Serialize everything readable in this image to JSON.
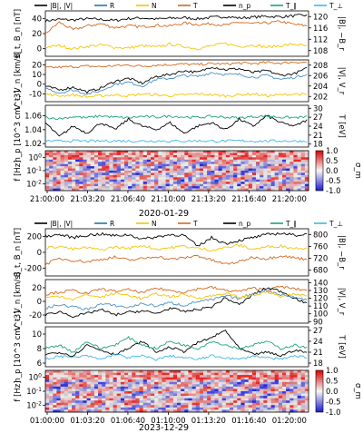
{
  "figure": {
    "colors": {
      "B": "#1f6fb4",
      "Bmag": "#000000",
      "R": "#1f77b4",
      "N": "#f5c400",
      "T": "#d2691e",
      "np": "#000000",
      "Tpar": "#1aa37a",
      "Tperp": "#3fb8e6",
      "Vt": "#000000",
      "Vr": "#4a90c8",
      "Vn": "#f5c400",
      "Vmag": "#d2691e"
    }
  },
  "chart_data": [
    {
      "type": "line",
      "event_date": "2020-01-29",
      "legend": [
        "|B|, |V|",
        "R",
        "N",
        "T",
        "n_p",
        "T_∥",
        "T_⊥"
      ],
      "x_tick_labels": [
        "21:00:00",
        "21:03:20",
        "21:06:40",
        "21:10:00",
        "21:13:20",
        "21:16:40",
        "21:20:00"
      ],
      "panels": [
        {
          "name": "magnetic-field",
          "ylabel_left": "B_t, B_n [nT]",
          "ylabel_right": "|B|, −B_r",
          "yticks_left": [
            "0",
            "20",
            "40"
          ],
          "yticks_right": [
            "108",
            "112",
            "116",
            "120"
          ],
          "ylim_left": [
            -10,
            50
          ],
          "ylim_right": [
            106,
            122
          ],
          "series": [
            {
              "name": "|B|",
              "axis": "right",
              "values": [
                118.5,
                119,
                118.8,
                119.2,
                119,
                118.6,
                119.3,
                119.5,
                119.1,
                119.4,
                119.6,
                119.2,
                119.7,
                120,
                119.5,
                119.8,
                120.1,
                119.9,
                120.3,
                120.5
              ]
            },
            {
              "name": "T",
              "axis": "left",
              "values": [
                20,
                35,
                25,
                30,
                33,
                28,
                30,
                29,
                31,
                30,
                34,
                32,
                33,
                31,
                35,
                33,
                34,
                36,
                32,
                30
              ]
            },
            {
              "name": "N",
              "axis": "left",
              "values": [
                2,
                4,
                0,
                3,
                5,
                2,
                1,
                4,
                2,
                6,
                3,
                0,
                4,
                7,
                3,
                5,
                2,
                4,
                6,
                3
              ]
            }
          ]
        },
        {
          "name": "velocity",
          "ylabel_left": "V_t, V_n [km/s]",
          "ylabel_right": "|V|, V_r",
          "yticks_left": [
            "-10",
            "0",
            "10",
            "20"
          ],
          "yticks_right": [
            "202",
            "204",
            "206",
            "208"
          ],
          "ylim_left": [
            -18,
            25
          ],
          "ylim_right": [
            201,
            209
          ],
          "series": [
            {
              "name": "|V|",
              "axis": "right",
              "values": [
                207.5,
                207.6,
                207.7,
                207.8,
                207.7,
                207.9,
                208,
                207.8,
                208,
                208.1,
                208.2,
                208.1,
                208.3,
                208.2,
                208.4,
                208.3,
                208.5,
                208.4,
                208.6,
                208.5
              ]
            },
            {
              "name": "V_t",
              "axis": "left",
              "values": [
                -2,
                -6,
                -3,
                -8,
                -4,
                3,
                6,
                1,
                8,
                10,
                14,
                12,
                18,
                15,
                16,
                12,
                14,
                9,
                11,
                17
              ]
            },
            {
              "name": "V_r",
              "axis": "left",
              "values": [
                -4,
                -9,
                -6,
                -10,
                -7,
                0,
                2,
                -2,
                5,
                6,
                9,
                8,
                12,
                10,
                10,
                7,
                9,
                5,
                7,
                11
              ]
            },
            {
              "name": "V_n",
              "axis": "left",
              "values": [
                -10,
                -12,
                -11,
                -13,
                -12,
                -11,
                -12,
                -10,
                -11,
                -12,
                -11,
                -10,
                -11,
                -12,
                -11,
                -10,
                -12,
                -11,
                -10,
                -11
              ]
            }
          ]
        },
        {
          "name": "density-temperature",
          "ylabel_left": "n_p [10^3 cm^-3]",
          "ylabel_right": "T [eV]",
          "yticks_left": [
            "1.02",
            "1.04",
            "1.06"
          ],
          "yticks_right": [
            "18",
            "21",
            "24",
            "27",
            "30"
          ],
          "ylim_left": [
            1.015,
            1.075
          ],
          "ylim_right": [
            17,
            31
          ],
          "series": [
            {
              "name": "n_p",
              "axis": "left",
              "values": [
                1.05,
                1.03,
                1.045,
                1.035,
                1.05,
                1.04,
                1.055,
                1.045,
                1.04,
                1.05,
                1.035,
                1.045,
                1.05,
                1.04,
                1.055,
                1.045,
                1.06,
                1.05,
                1.045,
                1.055
              ]
            },
            {
              "name": "T_∥",
              "axis": "right",
              "values": [
                27,
                26.5,
                27.2,
                26.8,
                27.5,
                27,
                26.8,
                27.3,
                27,
                27.4,
                27.1,
                26.9,
                27.3,
                27,
                26.8,
                27.2,
                27.4,
                27,
                26.9,
                27.1
              ]
            },
            {
              "name": "T_⊥",
              "axis": "right",
              "values": [
                19,
                19,
                19.1,
                19,
                19,
                19.1,
                19,
                19,
                19.1,
                19,
                19,
                19.1,
                19,
                19,
                19.1,
                19,
                19,
                19.1,
                19,
                19
              ]
            }
          ]
        },
        {
          "name": "spectrogram",
          "ylabel_left": "f [Hz]",
          "yticks_left": [
            "10^-2",
            "10^-1",
            "10^0"
          ],
          "colorbar_label": "σ_m",
          "colorbar_ticks": [
            "1.0",
            "0.5",
            "0.0",
            "-0.5",
            "-1.0"
          ],
          "clim": [
            -1,
            1
          ]
        }
      ]
    },
    {
      "type": "line",
      "event_date": "2023-12-29",
      "legend": [
        "|B|, |V|",
        "R",
        "N",
        "T",
        "n_p",
        "T_∥",
        "T_⊥"
      ],
      "x_tick_labels": [
        "01:00:00",
        "01:03:20",
        "01:06:40",
        "01:10:00",
        "01:13:20",
        "01:16:40",
        "01:20:00"
      ],
      "panels": [
        {
          "name": "magnetic-field",
          "ylabel_left": "B_t, B_n [nT]",
          "ylabel_right": "|B|, −B_r",
          "yticks_left": [
            "-200",
            "0",
            "200"
          ],
          "yticks_right": [
            "680",
            "720",
            "760",
            "800"
          ],
          "ylim_left": [
            -300,
            300
          ],
          "ylim_right": [
            660,
            820
          ],
          "series": [
            {
              "name": "|B|",
              "axis": "right",
              "values": [
                795,
                800,
                790,
                798,
                802,
                796,
                800,
                785,
                792,
                800,
                798,
                760,
                790,
                770,
                780,
                790,
                800,
                805,
                798,
                802
              ]
            },
            {
              "name": "T",
              "axis": "left",
              "values": [
                -150,
                -80,
                -100,
                -120,
                -90,
                -60,
                -100,
                -80,
                -50,
                -90,
                -70,
                -40,
                -100,
                -150,
                -120,
                -60,
                -80,
                -40,
                -70,
                -90
              ]
            },
            {
              "name": "N",
              "axis": "left",
              "values": [
                50,
                80,
                40,
                60,
                30,
                70,
                50,
                90,
                40,
                60,
                80,
                50,
                30,
                60,
                90,
                40,
                70,
                80,
                50,
                60
              ]
            }
          ]
        },
        {
          "name": "velocity",
          "ylabel_left": "V_t, V_n [km/s]",
          "ylabel_right": "|V|, V_r",
          "yticks_left": [
            "-20",
            "0",
            "20"
          ],
          "yticks_right": [
            "90",
            "100",
            "110",
            "120",
            "130",
            "140"
          ],
          "ylim_left": [
            -32,
            32
          ],
          "ylim_right": [
            88,
            144
          ],
          "series": [
            {
              "name": "|V|",
              "axis": "right",
              "values": [
                125,
                128,
                130,
                126,
                132,
                129,
                131,
                127,
                133,
                130,
                128,
                132,
                134,
                130,
                129,
                133,
                131,
                135,
                132,
                130
              ]
            },
            {
              "name": "V_t",
              "axis": "left",
              "values": [
                -20,
                -15,
                -22,
                -18,
                -12,
                -20,
                -16,
                -14,
                -18,
                -10,
                -15,
                -12,
                -8,
                5,
                -5,
                10,
                20,
                15,
                5,
                -5
              ]
            },
            {
              "name": "V_r",
              "axis": "left",
              "values": [
                -10,
                -5,
                -8,
                -12,
                -4,
                -6,
                -9,
                -3,
                -7,
                -2,
                -6,
                0,
                2,
                8,
                4,
                12,
                16,
                10,
                6,
                2
              ]
            },
            {
              "name": "V_n",
              "axis": "left",
              "values": [
                5,
                8,
                3,
                10,
                6,
                12,
                9,
                4,
                11,
                7,
                10,
                5,
                8,
                12,
                6,
                9,
                14,
                7,
                10,
                8
              ]
            }
          ]
        },
        {
          "name": "density-temperature",
          "ylabel_left": "n_p [10^3 cm^-3]",
          "ylabel_right": "T [eV]",
          "yticks_left": [
            "6",
            "8",
            "10"
          ],
          "yticks_right": [
            "18",
            "21",
            "24",
            "27"
          ],
          "ylim_left": [
            5.5,
            11
          ],
          "ylim_right": [
            17,
            28
          ],
          "series": [
            {
              "name": "n_p",
              "axis": "left",
              "values": [
                7.2,
                7.5,
                7.0,
                8.5,
                7.8,
                7.2,
                8.0,
                9.0,
                7.5,
                8.2,
                7.6,
                8.8,
                9.5,
                10.5,
                8.0,
                7.2,
                7.5,
                7.0,
                7.8,
                7.4
              ]
            },
            {
              "name": "T_∥",
              "axis": "right",
              "values": [
                22,
                23,
                21,
                24,
                22,
                23,
                25,
                23,
                22,
                24,
                23,
                22,
                24,
                23,
                22,
                23,
                24,
                22,
                23,
                22
              ]
            },
            {
              "name": "T_⊥",
              "axis": "right",
              "values": [
                19,
                20,
                19.5,
                20,
                19,
                20.5,
                19.5,
                20,
                19,
                20,
                19.5,
                19,
                20,
                19.5,
                19,
                20,
                19.5,
                19,
                20,
                19.5
              ]
            }
          ]
        },
        {
          "name": "spectrogram",
          "ylabel_left": "f [Hz]",
          "yticks_left": [
            "10^-2",
            "10^-1",
            "10^0"
          ],
          "colorbar_label": "σ_m",
          "colorbar_ticks": [
            "1.0",
            "0.5",
            "0.0",
            "-0.5",
            "-1.0"
          ],
          "clim": [
            -1,
            1
          ]
        }
      ]
    }
  ]
}
